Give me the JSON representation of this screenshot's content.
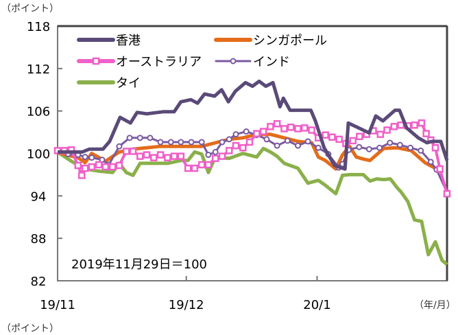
{
  "chart_data": {
    "type": "line",
    "y_unit_label": "（ポイント）",
    "y_unit_label_bottom": "（ポイント）",
    "x_unit_label": "（年/月）",
    "annotation": "2019年11月29日＝100",
    "ylim": [
      82,
      118
    ],
    "yticks": [
      118,
      112,
      106,
      100,
      94,
      88,
      82
    ],
    "xlim": [
      0,
      93.5
    ],
    "xticks": [
      {
        "label": "19/11",
        "x": 0
      },
      {
        "label": "19/12",
        "x": 30.9
      },
      {
        "label": "20/1",
        "x": 62.3
      }
    ],
    "grid": false,
    "legend": "top-left",
    "series": [
      {
        "name": "香港",
        "color": "#5a4a78",
        "marker": "none",
        "x": [
          0,
          5.9,
          7.6,
          10.9,
          12.5,
          15,
          17.5,
          19.1,
          21.4,
          25.5,
          28,
          29.6,
          32,
          33.6,
          35.3,
          37.7,
          39.4,
          41,
          42.7,
          45.1,
          46.8,
          48.4,
          50,
          51.7,
          53.4,
          54.2,
          55.8,
          60.8,
          61.9,
          64,
          66.5,
          69,
          69.8,
          72.3,
          74.8,
          76.4,
          78.1,
          81,
          82.1,
          83.8,
          86.6,
          88.7,
          89.8,
          92,
          93.5
        ],
        "values": [
          100.2,
          100.2,
          100.6,
          100.6,
          101.7,
          105.1,
          104.3,
          105.8,
          105.6,
          105.9,
          105.9,
          107.3,
          107.6,
          107.1,
          108.4,
          108.1,
          109.0,
          107.3,
          108.8,
          110.0,
          109.5,
          110.2,
          109.5,
          110.0,
          106.6,
          107.8,
          106.1,
          106.1,
          104.6,
          100.8,
          98.3,
          97.8,
          104.3,
          103.6,
          102.9,
          105.3,
          104.6,
          106.1,
          106.1,
          103.6,
          102.2,
          101.5,
          101.7,
          101.7,
          99.0
        ]
      },
      {
        "name": "シンガポール",
        "color": "#e46c1a",
        "marker": "none",
        "x": [
          0,
          4.9,
          6.6,
          8.2,
          11.5,
          14.8,
          18.1,
          21.4,
          24.7,
          28,
          31.3,
          34.6,
          37.9,
          41.2,
          44.5,
          47.8,
          51.1,
          54.4,
          57.7,
          61,
          62.6,
          64.3,
          66.8,
          68.4,
          70.1,
          71.7,
          73.4,
          75,
          78.3,
          81.6,
          84.9,
          88.2,
          91
        ],
        "values": [
          100.1,
          99.4,
          98.7,
          100.0,
          98.9,
          100.2,
          100.6,
          100.8,
          101.0,
          101.0,
          101.0,
          101.0,
          101.5,
          102.0,
          102.2,
          102.7,
          102.7,
          102.2,
          101.7,
          101.5,
          99.5,
          99.0,
          97.8,
          99.8,
          101.0,
          99.5,
          99.2,
          99.0,
          100.7,
          100.8,
          100.4,
          98.7,
          97.8
        ]
      },
      {
        "name": "オーストラリア",
        "color": "#f060c8",
        "marker": "square",
        "x": [
          0,
          1.6,
          3.3,
          4.9,
          5.8,
          6.6,
          8.2,
          9.9,
          11.5,
          13.2,
          14.8,
          16.5,
          18.1,
          19.8,
          21.4,
          23.1,
          24.7,
          26.4,
          28,
          29.6,
          31.3,
          32.9,
          34.6,
          36.2,
          37.9,
          39.5,
          41.2,
          42.8,
          44.5,
          46.1,
          47.8,
          49.4,
          51.1,
          52.7,
          54.4,
          56,
          57.7,
          59.3,
          61,
          62.6,
          64.3,
          65.9,
          67.6,
          69.2,
          70.9,
          72.5,
          74.2,
          75.8,
          77.5,
          79.1,
          80.8,
          82.4,
          84.1,
          85.7,
          87.4,
          88.5,
          89.6,
          90.7,
          91.8,
          93.5
        ],
        "values": [
          100.4,
          100.4,
          100.5,
          98.3,
          96.9,
          97.9,
          98.1,
          98.4,
          98.1,
          98.1,
          98.3,
          100.3,
          100.3,
          99.6,
          99.8,
          99.4,
          99.8,
          99.4,
          99.6,
          99.6,
          97.9,
          97.9,
          98.4,
          98.4,
          99.3,
          99.6,
          100.4,
          101.1,
          100.8,
          101.6,
          102.8,
          103.1,
          103.8,
          104.2,
          103.5,
          103.7,
          103.5,
          103.6,
          103.3,
          102.2,
          102.6,
          102.3,
          102.0,
          101.4,
          101.8,
          102.4,
          102.7,
          103.2,
          102.7,
          103.3,
          103.8,
          104.0,
          103.9,
          104.0,
          104.3,
          102.8,
          101.9,
          100.8,
          97.8,
          94.3
        ]
      },
      {
        "name": "インド",
        "color": "#7a5aa0",
        "marker": "circle",
        "x": [
          0,
          2.5,
          4.9,
          6.6,
          8.2,
          10.7,
          12.3,
          14.8,
          17.3,
          19.8,
          22.2,
          24.7,
          27.2,
          29.6,
          32.1,
          34.6,
          36.2,
          37.9,
          39.5,
          41.2,
          42.8,
          45.3,
          47.8,
          50.2,
          52.7,
          55.2,
          57.7,
          60.1,
          62.6,
          65,
          67.5,
          68.4,
          69.9,
          72.4,
          74.8,
          77.3,
          79.8,
          82.2,
          84.7,
          87.2,
          89.6,
          91,
          93.5
        ],
        "values": [
          100.3,
          99.9,
          99.8,
          99.5,
          99.4,
          99.1,
          98.4,
          101.0,
          102.2,
          102.2,
          102.2,
          101.6,
          101.6,
          101.6,
          101.6,
          101.6,
          99.8,
          100.2,
          101.6,
          102.0,
          102.7,
          103.1,
          102.6,
          102.0,
          101.1,
          101.8,
          101.1,
          101.7,
          100.8,
          99.9,
          98.0,
          98.5,
          100.5,
          100.9,
          100.6,
          100.8,
          101.5,
          101.2,
          100.8,
          100.4,
          98.8,
          97.7,
          94.5
        ]
      },
      {
        "name": "タイ",
        "color": "#8ab04a",
        "marker": "none",
        "x": [
          0,
          3.3,
          6.6,
          9.9,
          13.2,
          14.8,
          16.5,
          18.1,
          19.8,
          23.1,
          26.4,
          29.6,
          31.3,
          32.9,
          34.6,
          36.2,
          37.9,
          41.2,
          44.5,
          47.8,
          49.4,
          51.1,
          52.7,
          54.4,
          57.7,
          60.1,
          62.6,
          64.3,
          66.8,
          68.4,
          70.1,
          73.4,
          75,
          76.6,
          78.3,
          79.9,
          81.6,
          82.4,
          84.1,
          85.7,
          87.4,
          89,
          90.7,
          92.3,
          93.5
        ],
        "values": [
          100.2,
          98.9,
          97.8,
          97.5,
          97.3,
          98.6,
          97.3,
          96.9,
          98.6,
          98.6,
          98.6,
          99.0,
          99.0,
          100.2,
          99.9,
          97.3,
          99.5,
          99.3,
          100.0,
          99.5,
          100.7,
          100.2,
          99.6,
          98.6,
          97.9,
          95.8,
          96.2,
          95.5,
          94.3,
          96.9,
          97.0,
          97.0,
          96.1,
          96.4,
          96.3,
          96.4,
          95.1,
          94.6,
          93.2,
          90.6,
          90.4,
          85.7,
          87.5,
          84.9,
          84.3
        ]
      }
    ]
  }
}
